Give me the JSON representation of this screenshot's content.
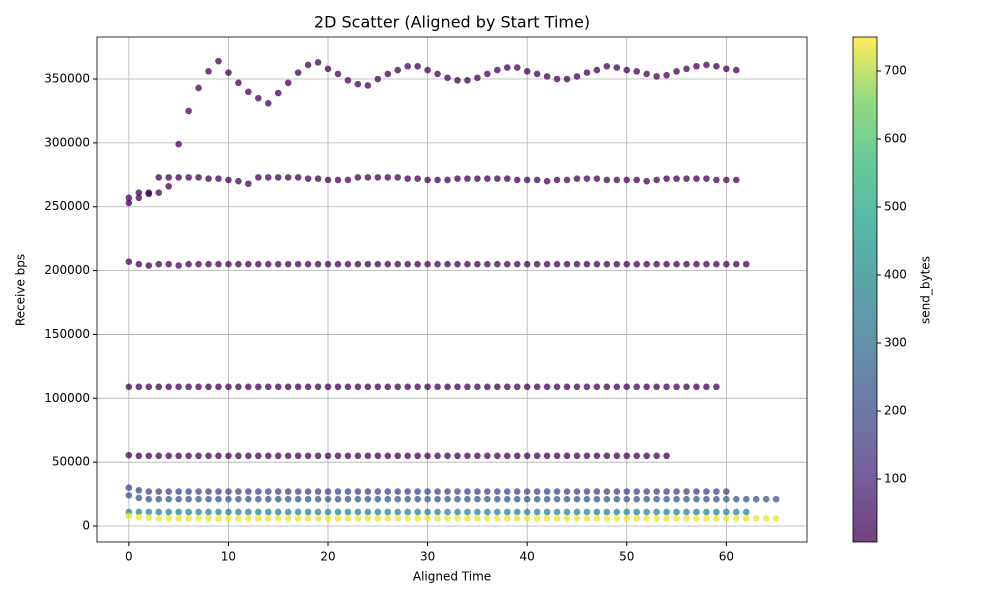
{
  "chart_data": {
    "type": "scatter",
    "title": "2D Scatter (Aligned by Start Time)",
    "x_label": "Aligned Time",
    "y_label": "Receive bps",
    "colorbar_label": "send_bytes",
    "xlim": [
      -3.2,
      68.1
    ],
    "xticks": [
      0,
      10,
      20,
      30,
      40,
      50,
      60
    ],
    "ylim": [
      -12500,
      382900
    ],
    "yticks": [
      0,
      50000,
      100000,
      150000,
      200000,
      250000,
      300000,
      350000
    ],
    "clim": [
      7.4,
      750
    ],
    "cticks": [
      100,
      200,
      300,
      400,
      500,
      600,
      700
    ],
    "colormap": "viridis",
    "grid": true,
    "series": [
      {
        "c": 10,
        "x": [
          0,
          1,
          2,
          3,
          4,
          5,
          6,
          7,
          8,
          9,
          10,
          11,
          12,
          13,
          14,
          15,
          16,
          17,
          18,
          19,
          20,
          21,
          22,
          23,
          24,
          25,
          26,
          27,
          28,
          29,
          30,
          31,
          32,
          33,
          34,
          35,
          36,
          37,
          38,
          39,
          40,
          41,
          42,
          43,
          44,
          45,
          46,
          47,
          48,
          49,
          50,
          51,
          52,
          53,
          54,
          55,
          56,
          57,
          58,
          59,
          60,
          61
        ],
        "values": [
          257000,
          261000,
          261000,
          273000,
          266000,
          299000,
          325000,
          343000,
          356000,
          364000,
          355000,
          347000,
          340000,
          335000,
          331000,
          339000,
          347000,
          355000,
          361000,
          363000,
          358000,
          354000,
          349000,
          346000,
          345000,
          350000,
          354000,
          357000,
          360000,
          360000,
          357000,
          354000,
          351000,
          349000,
          349000,
          351000,
          354000,
          357000,
          359000,
          359000,
          356000,
          354000,
          352000,
          350000,
          350000,
          352000,
          355000,
          357000,
          360000,
          359000,
          357000,
          356000,
          354000,
          352000,
          353000,
          356000,
          358000,
          360000,
          361000,
          360000,
          358000,
          357000
        ]
      },
      {
        "c": 10,
        "x": [
          0,
          1,
          2,
          3,
          4,
          5,
          6,
          7,
          8,
          9,
          10,
          11,
          12,
          13,
          14,
          15,
          16,
          17,
          18,
          19,
          20,
          21,
          22,
          23,
          24,
          25,
          26,
          27,
          28,
          29,
          30,
          31,
          32,
          33,
          34,
          35,
          36,
          37,
          38,
          39,
          40,
          41,
          42,
          43,
          44,
          45,
          46,
          47,
          48,
          49,
          50,
          51,
          52,
          53,
          54,
          55,
          56,
          57,
          58,
          59,
          60,
          61
        ],
        "values": [
          253000,
          257000,
          260000,
          261000,
          273000,
          273000,
          273000,
          273000,
          272000,
          272000,
          271000,
          270000,
          268000,
          273000,
          273000,
          273000,
          273000,
          273000,
          272000,
          272000,
          271000,
          271000,
          271000,
          273000,
          273000,
          273000,
          273000,
          273000,
          272000,
          272000,
          271000,
          271000,
          271000,
          272000,
          272000,
          272000,
          272000,
          272000,
          272000,
          271000,
          271000,
          271000,
          270000,
          271000,
          271000,
          272000,
          272000,
          272000,
          271000,
          271000,
          271000,
          271000,
          270000,
          271000,
          272000,
          272000,
          272000,
          272000,
          272000,
          271000,
          271000,
          271000
        ]
      },
      {
        "c": 10,
        "x": [
          0,
          1,
          2,
          3,
          4,
          5,
          6,
          7,
          8,
          9,
          10,
          11,
          12,
          13,
          14,
          15,
          16,
          17,
          18,
          19,
          20,
          21,
          22,
          23,
          24,
          25,
          26,
          27,
          28,
          29,
          30,
          31,
          32,
          33,
          34,
          35,
          36,
          37,
          38,
          39,
          40,
          41,
          42,
          43,
          44,
          45,
          46,
          47,
          48,
          49,
          50,
          51,
          52,
          53,
          54,
          55,
          56,
          57,
          58,
          59,
          60,
          61,
          62
        ],
        "values": [
          207000,
          205000,
          204000,
          205000,
          205000,
          204000,
          205000,
          205000,
          205000,
          205000,
          205000,
          205000,
          205000,
          205000,
          205000,
          205000,
          205000,
          205000,
          205000,
          205000,
          205000,
          205000,
          205000,
          205000,
          205000,
          205000,
          205000,
          205000,
          205000,
          205000,
          205000,
          205000,
          205000,
          205000,
          205000,
          205000,
          205000,
          205000,
          205000,
          205000,
          205000,
          205000,
          205000,
          205000,
          205000,
          205000,
          205000,
          205000,
          205000,
          205000,
          205000,
          205000,
          205000,
          205000,
          205000,
          205000,
          205000,
          205000,
          205000,
          205000,
          205000,
          205000,
          205000
        ]
      },
      {
        "c": 10,
        "x": [
          0,
          1,
          2,
          3,
          4,
          5,
          6,
          7,
          8,
          9,
          10,
          11,
          12,
          13,
          14,
          15,
          16,
          17,
          18,
          19,
          20,
          21,
          22,
          23,
          24,
          25,
          26,
          27,
          28,
          29,
          30,
          31,
          32,
          33,
          34,
          35,
          36,
          37,
          38,
          39,
          40,
          41,
          42,
          43,
          44,
          45,
          46,
          47,
          48,
          49,
          50,
          51,
          52,
          53,
          54,
          55,
          56,
          57,
          58,
          59
        ],
        "values": [
          109000,
          109000,
          109000,
          109000,
          109000,
          109000,
          109000,
          109000,
          109000,
          109000,
          109000,
          109000,
          109000,
          109000,
          109000,
          109000,
          109000,
          109000,
          109000,
          109000,
          109000,
          109000,
          109000,
          109000,
          109000,
          109000,
          109000,
          109000,
          109000,
          109000,
          109000,
          109000,
          109000,
          109000,
          109000,
          109000,
          109000,
          109000,
          109000,
          109000,
          109000,
          109000,
          109000,
          109000,
          109000,
          109000,
          109000,
          109000,
          109000,
          109000,
          109000,
          109000,
          109000,
          109000,
          109000,
          109000,
          109000,
          109000,
          109000,
          109000
        ]
      },
      {
        "c": 10,
        "x": [
          0,
          1,
          2,
          3,
          4,
          5,
          6,
          7,
          8,
          9,
          10,
          11,
          12,
          13,
          14,
          15,
          16,
          17,
          18,
          19,
          20,
          21,
          22,
          23,
          24,
          25,
          26,
          27,
          28,
          29,
          30,
          31,
          32,
          33,
          34,
          35,
          36,
          37,
          38,
          39,
          40,
          41,
          42,
          43,
          44,
          45,
          46,
          47,
          48,
          49,
          50,
          51,
          52,
          53,
          54
        ],
        "values": [
          55500,
          55000,
          55000,
          55000,
          55000,
          55000,
          55000,
          55000,
          55000,
          55000,
          55000,
          55000,
          55000,
          55000,
          55000,
          55000,
          55000,
          55000,
          55000,
          55000,
          55000,
          55000,
          55000,
          55000,
          55000,
          55000,
          55000,
          55000,
          55000,
          55000,
          55000,
          55000,
          55000,
          55000,
          55000,
          55000,
          55000,
          55000,
          55000,
          55000,
          55000,
          55000,
          55000,
          55000,
          55000,
          55000,
          55000,
          55000,
          55000,
          55000,
          55000,
          55000,
          55000,
          55000,
          55000
        ]
      },
      {
        "c": 170,
        "x": [
          0,
          1,
          2,
          3,
          4,
          5,
          6,
          7,
          8,
          9,
          10,
          11,
          12,
          13,
          14,
          15,
          16,
          17,
          18,
          19,
          20,
          21,
          22,
          23,
          24,
          25,
          26,
          27,
          28,
          29,
          30,
          31,
          32,
          33,
          34,
          35,
          36,
          37,
          38,
          39,
          40,
          41,
          42,
          43,
          44,
          45,
          46,
          47,
          48,
          49,
          50,
          51,
          52,
          53,
          54,
          55,
          56,
          57,
          58,
          59,
          60
        ],
        "values": [
          30000,
          28000,
          27000,
          27000,
          27000,
          27000,
          27000,
          27000,
          27000,
          27000,
          27000,
          27000,
          27000,
          27000,
          27000,
          27000,
          27000,
          27000,
          27000,
          27000,
          27000,
          27000,
          27000,
          27000,
          27000,
          27000,
          27000,
          27000,
          27000,
          27000,
          27000,
          27000,
          27000,
          27000,
          27000,
          27000,
          27000,
          27000,
          27000,
          27000,
          27000,
          27000,
          27000,
          27000,
          27000,
          27000,
          27000,
          27000,
          27000,
          27000,
          27000,
          27000,
          27000,
          27000,
          27000,
          27000,
          27000,
          27000,
          27000,
          27000,
          27000
        ]
      },
      {
        "c": 230,
        "x": [
          0,
          1,
          2,
          3,
          4,
          5,
          6,
          7,
          8,
          9,
          10,
          11,
          12,
          13,
          14,
          15,
          16,
          17,
          18,
          19,
          20,
          21,
          22,
          23,
          24,
          25,
          26,
          27,
          28,
          29,
          30,
          31,
          32,
          33,
          34,
          35,
          36,
          37,
          38,
          39,
          40,
          41,
          42,
          43,
          44,
          45,
          46,
          47,
          48,
          49,
          50,
          51,
          52,
          53,
          54,
          55,
          56,
          57,
          58,
          59,
          60,
          61,
          62,
          63,
          64,
          65
        ],
        "values": [
          24000,
          22000,
          21000,
          21000,
          21000,
          21000,
          21000,
          21000,
          21000,
          21000,
          21000,
          21000,
          21000,
          21000,
          21000,
          21000,
          21000,
          21000,
          21000,
          21000,
          21000,
          21000,
          21000,
          21000,
          21000,
          21000,
          21000,
          21000,
          21000,
          21000,
          21000,
          21000,
          21000,
          21000,
          21000,
          21000,
          21000,
          21000,
          21000,
          21000,
          21000,
          21000,
          21000,
          21000,
          21000,
          21000,
          21000,
          21000,
          21000,
          21000,
          21000,
          21000,
          21000,
          21000,
          21000,
          21000,
          21000,
          21000,
          21000,
          21000,
          21000,
          21000,
          21000,
          21000,
          21000,
          21000
        ]
      },
      {
        "c": 390,
        "x": [
          0,
          1,
          2,
          3,
          4,
          5,
          6,
          7,
          8,
          9,
          10,
          11,
          12,
          13,
          14,
          15,
          16,
          17,
          18,
          19,
          20,
          21,
          22,
          23,
          24,
          25,
          26,
          27,
          28,
          29,
          30,
          31,
          32,
          33,
          34,
          35,
          36,
          37,
          38,
          39,
          40,
          41,
          42,
          43,
          44,
          45,
          46,
          47,
          48,
          49,
          50,
          51,
          52,
          53,
          54,
          55,
          56,
          57,
          58,
          59,
          60,
          61,
          62
        ],
        "values": [
          11000,
          11000,
          11000,
          11000,
          11000,
          11000,
          11000,
          11000,
          11000,
          11000,
          11000,
          11000,
          11000,
          11000,
          11000,
          11000,
          11000,
          11000,
          11000,
          11000,
          11000,
          11000,
          11000,
          11000,
          11000,
          11000,
          11000,
          11000,
          11000,
          11000,
          11000,
          11000,
          11000,
          11000,
          11000,
          11000,
          11000,
          11000,
          11000,
          11000,
          11000,
          11000,
          11000,
          11000,
          11000,
          11000,
          11000,
          11000,
          11000,
          11000,
          11000,
          11000,
          11000,
          11000,
          11000,
          11000,
          11000,
          11000,
          11000,
          11000,
          11000,
          11000,
          11000
        ]
      },
      {
        "c": 740,
        "x": [
          0,
          1,
          2,
          3,
          4,
          5,
          6,
          7,
          8,
          9,
          10,
          11,
          12,
          13,
          14,
          15,
          16,
          17,
          18,
          19,
          20,
          21,
          22,
          23,
          24,
          25,
          26,
          27,
          28,
          29,
          30,
          31,
          32,
          33,
          34,
          35,
          36,
          37,
          38,
          39,
          40,
          41,
          42,
          43,
          44,
          45,
          46,
          47,
          48,
          49,
          50,
          51,
          52,
          53,
          54,
          55,
          56,
          57,
          58,
          59,
          60,
          61,
          62,
          63,
          64,
          65
        ],
        "values": [
          8000,
          7000,
          6500,
          6000,
          6000,
          6000,
          6000,
          6000,
          6000,
          6000,
          6000,
          6000,
          6000,
          6000,
          6000,
          6000,
          6000,
          6000,
          6000,
          6000,
          6000,
          6000,
          6000,
          6000,
          6000,
          6000,
          6000,
          6000,
          6000,
          6000,
          6000,
          6000,
          6000,
          6000,
          6000,
          6000,
          6000,
          6000,
          6000,
          6000,
          6000,
          6000,
          6000,
          6000,
          6000,
          6000,
          6000,
          6000,
          6000,
          6000,
          6000,
          6000,
          6000,
          6000,
          6000,
          6000,
          6000,
          6000,
          6000,
          6000,
          6000,
          6000,
          6000,
          6000,
          6000,
          6000
        ]
      }
    ]
  }
}
